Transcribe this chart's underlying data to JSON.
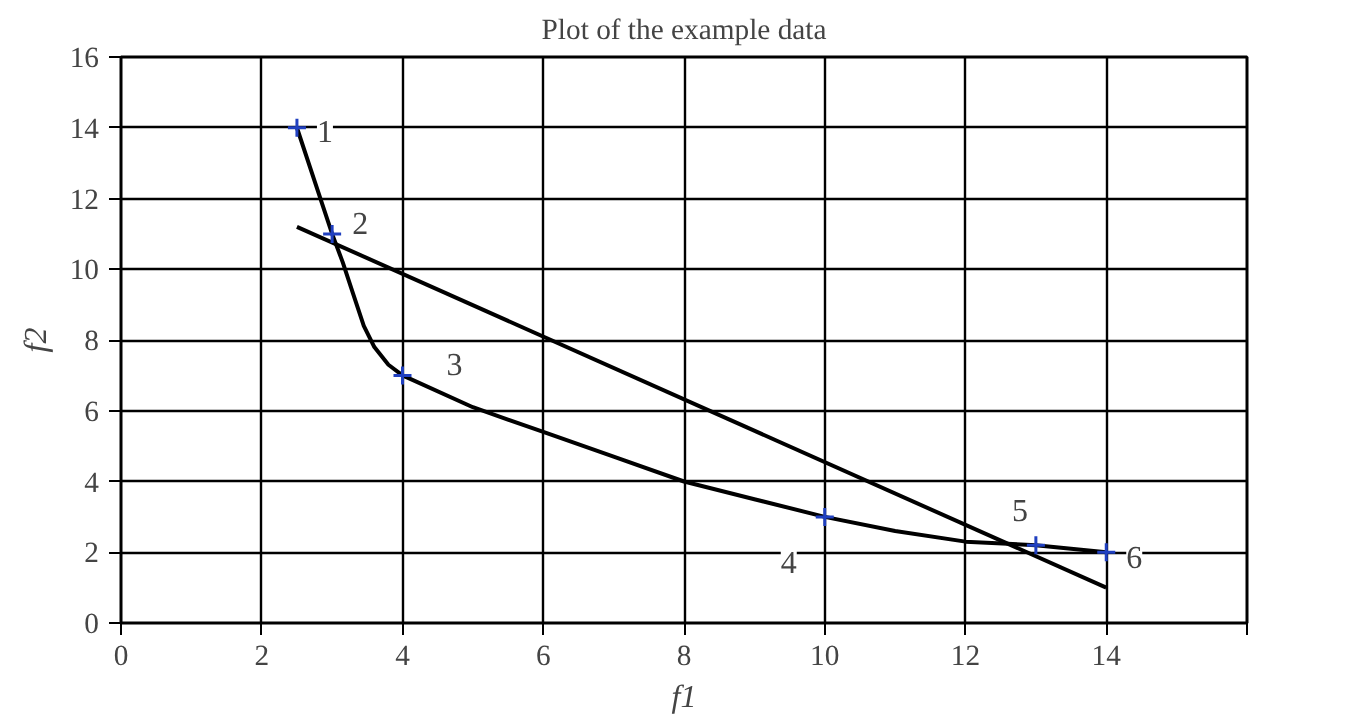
{
  "chart_data": {
    "type": "line",
    "title": "Plot of the example data",
    "xlabel": "f1",
    "ylabel": "f2",
    "xlim": [
      0,
      16
    ],
    "xticks": [
      0,
      2,
      4,
      6,
      8,
      10,
      12,
      14,
      {
        "value": 16,
        "label": null
      }
    ],
    "ylim": [
      0,
      16
    ],
    "yticks": [
      0,
      2,
      4,
      6,
      8,
      10,
      12,
      14,
      16
    ],
    "grid": true,
    "marker": "none",
    "line_style": "solid",
    "series": [
      {
        "color": "#000000",
        "x": [
          2.5,
          2.75,
          3,
          3.15,
          3.3,
          3.45,
          3.6,
          3.8,
          4,
          5,
          6,
          7,
          8,
          9,
          10,
          11,
          12,
          13,
          14
        ],
        "values": [
          14,
          12.5,
          11,
          10.2,
          9.3,
          8.4,
          7.8,
          7.3,
          7,
          6.1,
          5.4,
          4.7,
          4,
          3.5,
          3,
          2.6,
          2.3,
          2.2,
          2
        ]
      },
      {
        "color": "#000000",
        "x": [
          2.5,
          14
        ],
        "values": [
          11.2,
          1
        ]
      },
      {
        "type": "scatter",
        "color": "#2040c0",
        "marker": "cross",
        "x": [
          2.5,
          3,
          4,
          10,
          13,
          14
        ],
        "values": [
          14,
          11,
          7,
          3,
          2.2,
          2
        ]
      }
    ],
    "annotations": [
      {
        "text": "1",
        "x": 2.5,
        "y": 14
      },
      {
        "text": "2",
        "x": 3,
        "y": 11
      },
      {
        "text": "3",
        "x": 4,
        "y": 7
      },
      {
        "text": "4",
        "x": 10,
        "y": 3
      },
      {
        "text": "5",
        "x": 13,
        "y": 2.2
      },
      {
        "text": "6",
        "x": 14,
        "y": 2
      }
    ]
  }
}
